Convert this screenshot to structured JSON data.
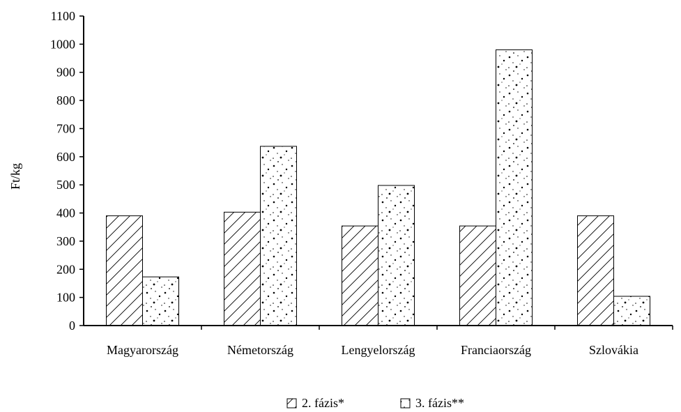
{
  "chart_data": {
    "type": "bar",
    "categories": [
      "Magyarország",
      "Németország",
      "Lengyelország",
      "Franciaország",
      "Szlovákia"
    ],
    "series": [
      {
        "name": "2. fázis*",
        "values": [
          390,
          403,
          354,
          354,
          390
        ],
        "pattern": "diagonal-hatch"
      },
      {
        "name": "3. fázis**",
        "values": [
          173,
          637,
          498,
          980,
          104
        ],
        "pattern": "dots"
      }
    ],
    "title": "",
    "xlabel": "",
    "ylabel": "Ft/kg",
    "ylim": [
      0,
      1100
    ],
    "yticks": [
      "0",
      "100",
      "200",
      "300",
      "400",
      "500",
      "600",
      "700",
      "800",
      "900",
      "1000",
      "1100"
    ],
    "grid": false,
    "legend_position": "bottom-center",
    "colors": {
      "bar_fill": "#ffffff",
      "bar_stroke": "#000000",
      "axis": "#000000"
    }
  }
}
